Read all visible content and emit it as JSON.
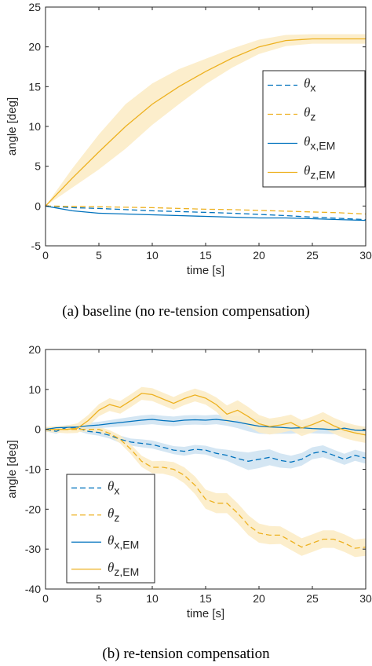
{
  "captions": {
    "a": "(a) baseline (no re-tension compensation)",
    "b": "(b) re-tension compensation"
  },
  "colors": {
    "blue": "#0072BD",
    "orange": "#EDB120",
    "blue_band": "#cfe3f2",
    "orange_band": "#fcecc6"
  },
  "chart_data": [
    {
      "type": "line",
      "title": "",
      "xlabel": "time [s]",
      "ylabel": "angle [deg]",
      "xlim": [
        0,
        30
      ],
      "ylim": [
        -5,
        25
      ],
      "xticks": [
        0,
        5,
        10,
        15,
        20,
        25,
        30
      ],
      "yticks": [
        -5,
        0,
        5,
        10,
        15,
        20,
        25
      ],
      "grid": false,
      "legend": "right",
      "x": [
        0,
        2.5,
        5,
        7.5,
        10,
        12.5,
        15,
        17.5,
        20,
        22.5,
        25,
        27.5,
        30
      ],
      "series": [
        {
          "name": "θx",
          "label_main": "θ",
          "label_sub": "x",
          "style": "dashed",
          "color": "blue",
          "values": [
            0,
            -0.2,
            -0.3,
            -0.45,
            -0.6,
            -0.7,
            -0.8,
            -0.9,
            -1.05,
            -1.2,
            -1.4,
            -1.55,
            -1.7
          ]
        },
        {
          "name": "θz",
          "label_main": "θ",
          "label_sub": "z",
          "style": "dashed",
          "color": "orange",
          "values": [
            0,
            -0.05,
            -0.1,
            -0.15,
            -0.2,
            -0.3,
            -0.4,
            -0.45,
            -0.55,
            -0.65,
            -0.75,
            -0.85,
            -1.0
          ]
        },
        {
          "name": "θx,EM",
          "label_main": "θ",
          "label_sub": "x,EM",
          "style": "solid",
          "color": "blue",
          "values": [
            0,
            -0.6,
            -0.9,
            -1.0,
            -1.1,
            -1.2,
            -1.3,
            -1.4,
            -1.5,
            -1.5,
            -1.6,
            -1.7,
            -1.8
          ]
        },
        {
          "name": "θz,EM",
          "label_main": "θ",
          "label_sub": "z,EM",
          "style": "solid",
          "color": "orange",
          "values": [
            0,
            3.5,
            6.8,
            10,
            12.8,
            15,
            16.9,
            18.6,
            20,
            20.8,
            21,
            21,
            21
          ],
          "band": [
            0,
            1.2,
            2.2,
            2.8,
            2.6,
            2.2,
            1.6,
            1.2,
            0.9,
            0.7,
            0.6,
            0.6,
            0.6
          ]
        }
      ]
    },
    {
      "type": "line",
      "title": "",
      "xlabel": "time [s]",
      "ylabel": "angle [deg]",
      "xlim": [
        0,
        30
      ],
      "ylim": [
        -40,
        20
      ],
      "xticks": [
        0,
        5,
        10,
        15,
        20,
        25,
        30
      ],
      "yticks": [
        -40,
        -30,
        -20,
        -10,
        0,
        10,
        20
      ],
      "grid": false,
      "legend": "bottom-left",
      "x": [
        0,
        1,
        2,
        3,
        4,
        5,
        6,
        7,
        8,
        9,
        10,
        11,
        12,
        13,
        14,
        15,
        16,
        17,
        18,
        19,
        20,
        21,
        22,
        23,
        24,
        25,
        26,
        27,
        28,
        29,
        30
      ],
      "series": [
        {
          "name": "θx",
          "label_main": "θ",
          "label_sub": "x",
          "style": "dashed",
          "color": "blue",
          "values": [
            0,
            -0.5,
            0.5,
            0.3,
            -0.5,
            -0.8,
            -1.5,
            -2.5,
            -3.2,
            -3.5,
            -3.8,
            -4.5,
            -5.2,
            -5.5,
            -5.0,
            -5.2,
            -6.0,
            -6.5,
            -7.3,
            -8.0,
            -7.5,
            -7.0,
            -7.8,
            -8.2,
            -7.5,
            -6.0,
            -5.5,
            -6.5,
            -7.5,
            -6.5,
            -7.2
          ],
          "band": [
            0.5,
            0.6,
            0.6,
            0.7,
            0.7,
            0.8,
            0.8,
            0.9,
            0.9,
            1.0,
            1.0,
            1.0,
            1.0,
            1.1,
            1.1,
            1.1,
            1.2,
            1.4,
            1.8,
            2.2,
            2.2,
            2.0,
            1.8,
            1.6,
            1.6,
            1.5,
            1.5,
            1.4,
            1.4,
            1.4,
            1.4
          ]
        },
        {
          "name": "θz",
          "label_main": "θ",
          "label_sub": "z",
          "style": "dashed",
          "color": "orange",
          "values": [
            0,
            0,
            0,
            0,
            0,
            0,
            -1,
            -2.5,
            -5,
            -8,
            -9.5,
            -9.5,
            -10,
            -11.5,
            -14,
            -17.5,
            -18.5,
            -18.5,
            -21,
            -24,
            -26,
            -26.5,
            -26.5,
            -28,
            -29.5,
            -28.5,
            -27.5,
            -27.5,
            -28.5,
            -29.8,
            -29.5
          ],
          "band": [
            0.5,
            0.5,
            0.5,
            0.6,
            0.6,
            0.7,
            0.8,
            1.0,
            1.2,
            1.4,
            1.5,
            1.6,
            1.8,
            2.0,
            2.2,
            2.4,
            2.5,
            2.5,
            2.5,
            2.5,
            2.4,
            2.3,
            2.2,
            2.2,
            2.2,
            2.2,
            2.2,
            2.2,
            2.2,
            2.2,
            2.2
          ]
        },
        {
          "name": "θx,EM",
          "label_main": "θ",
          "label_sub": "x,EM",
          "style": "solid",
          "color": "blue",
          "values": [
            0,
            0.4,
            0.5,
            0.6,
            0.9,
            1.1,
            1.4,
            1.7,
            2.0,
            2.3,
            2.5,
            2.2,
            2.0,
            2.3,
            2.4,
            2.3,
            2.5,
            2.2,
            1.8,
            1.3,
            0.8,
            0.6,
            0.5,
            0.3,
            0.4,
            0.2,
            0.1,
            -0.1,
            0.3,
            -0.2,
            -0.3
          ],
          "band": [
            0.3,
            0.4,
            0.5,
            0.6,
            0.7,
            0.8,
            0.9,
            1.0,
            1.1,
            1.2,
            1.2,
            1.2,
            1.2,
            1.2,
            1.2,
            1.2,
            1.2,
            1.3,
            1.5,
            1.8,
            1.9,
            1.8,
            1.6,
            1.4,
            1.3,
            1.2,
            1.2,
            1.1,
            1.1,
            1.0,
            1.0
          ]
        },
        {
          "name": "θz,EM",
          "label_main": "θ",
          "label_sub": "z,EM",
          "style": "solid",
          "color": "orange",
          "values": [
            0,
            0,
            0,
            0.3,
            2.2,
            4.8,
            6.2,
            5.5,
            7.2,
            9.0,
            8.7,
            7.6,
            6.5,
            7.7,
            8.6,
            7.8,
            6.2,
            3.8,
            4.8,
            3.2,
            1.4,
            0.7,
            1.1,
            1.7,
            0.3,
            1.2,
            2.3,
            0.9,
            -0.2,
            -0.9,
            -1.4
          ],
          "band": [
            0.6,
            0.8,
            1.0,
            1.2,
            1.4,
            1.5,
            1.6,
            1.6,
            1.6,
            1.6,
            1.6,
            1.6,
            1.6,
            1.6,
            1.6,
            1.6,
            1.8,
            2.2,
            2.5,
            2.4,
            2.2,
            2.0,
            2.0,
            2.0,
            2.0,
            2.0,
            2.0,
            2.0,
            2.0,
            2.0,
            2.0
          ]
        }
      ]
    }
  ]
}
